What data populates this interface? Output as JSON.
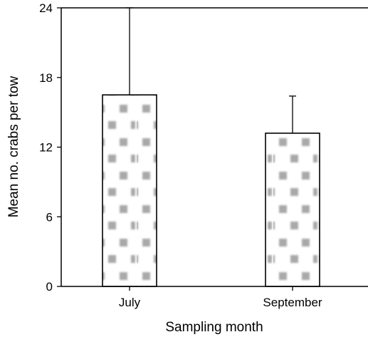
{
  "chart_data": {
    "type": "bar",
    "categories": [
      "July",
      "September"
    ],
    "values": [
      16.5,
      13.2
    ],
    "error_upper": [
      24.0,
      16.4
    ],
    "xlabel": "Sampling month",
    "ylabel": "Mean no. crabs per tow",
    "ylim": [
      0,
      24
    ],
    "yticks": [
      0,
      6,
      12,
      18,
      24
    ],
    "yticklabels": [
      "0",
      "6",
      "12",
      "18",
      "24"
    ],
    "grid": false,
    "legend": "none",
    "bar_fill": "stippled gray pattern",
    "colors": {
      "axis": "#000000",
      "bar_edge": "#000000",
      "stipple": "#9a9a9a"
    }
  }
}
